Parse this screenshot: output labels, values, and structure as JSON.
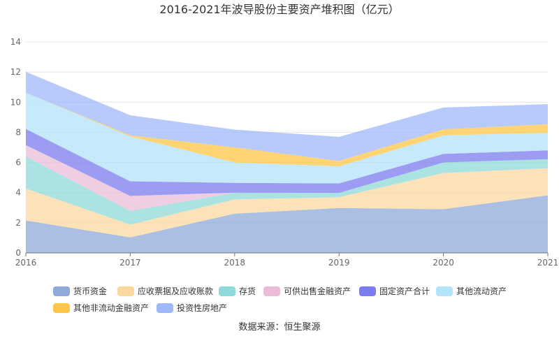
{
  "chart_data": {
    "type": "area",
    "stacked": true,
    "title": "2016-2021年波导股份主要资产堆积图（亿元）",
    "x": [
      "2016",
      "2017",
      "2018",
      "2019",
      "2020",
      "2021"
    ],
    "ylim": [
      0,
      14
    ],
    "yticks": [
      0,
      2,
      4,
      6,
      8,
      10,
      12,
      14
    ],
    "grid": true,
    "legend_position": "bottom",
    "series": [
      {
        "name": "货币资金",
        "color": "#8eaad8",
        "values": [
          2.15,
          1.03,
          2.6,
          2.98,
          2.9,
          3.82
        ]
      },
      {
        "name": "应收票据及应收账款",
        "color": "#fbd8a0",
        "values": [
          2.12,
          0.85,
          0.95,
          0.72,
          2.4,
          1.8
        ]
      },
      {
        "name": "存货",
        "color": "#8ddad8",
        "values": [
          2.13,
          0.9,
          0.45,
          0.28,
          0.7,
          0.6
        ]
      },
      {
        "name": "可供出售金融资产",
        "color": "#eabcd8",
        "values": [
          0.75,
          1.0,
          0.0,
          0.0,
          0.0,
          0.0
        ]
      },
      {
        "name": "固定资产合计",
        "color": "#7b7cee",
        "values": [
          1.07,
          0.97,
          0.65,
          0.63,
          0.57,
          0.58
        ]
      },
      {
        "name": "其他流动资产",
        "color": "#b3e3fb",
        "values": [
          2.4,
          2.98,
          1.35,
          1.14,
          1.23,
          1.17
        ]
      },
      {
        "name": "其他非流动金融资产",
        "color": "#fdc646",
        "values": [
          0.0,
          0.07,
          1.0,
          0.35,
          0.4,
          0.57
        ]
      },
      {
        "name": "投资性房地产",
        "color": "#9fb8f9",
        "values": [
          1.4,
          1.33,
          1.18,
          1.6,
          1.45,
          1.33
        ]
      }
    ]
  },
  "source": "数据来源：恒生聚源"
}
